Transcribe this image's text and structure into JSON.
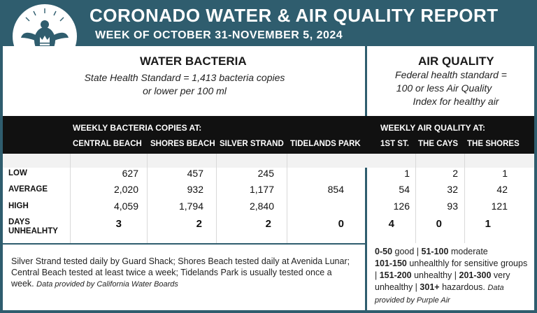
{
  "header": {
    "title": "CORONADO WATER & AIR QUALITY REPORT",
    "subtitle": "WEEK OF OCTOBER 31-NOVEMBER 5, 2024"
  },
  "water": {
    "title": "WATER BACTERIA",
    "standard_line1": "State Health Standard  = 1,413 bacteria copies",
    "standard_line2": "or lower per 100 ml",
    "group_label": "WEEKLY BACTERIA COPIES AT:",
    "columns": [
      "CENTRAL BEACH",
      "SHORES BEACH",
      "SILVER STRAND",
      "TIDELANDS PARK"
    ]
  },
  "air": {
    "title": "AIR QUALITY",
    "standard_line1": "Federal health standard =",
    "standard_line2": "100 or less Air Quality",
    "standard_line3": "Index for healthy air",
    "group_label": "WEEKLY AIR QUALITY AT:",
    "columns": [
      "1ST ST.",
      "THE CAYS",
      "THE SHORES"
    ]
  },
  "rows": [
    {
      "label": "LOW",
      "water": [
        "627",
        "457",
        "245",
        ""
      ],
      "air": [
        "1",
        "2",
        "1"
      ]
    },
    {
      "label": "AVERAGE",
      "water": [
        "2,020",
        "932",
        "1,177",
        "854"
      ],
      "air": [
        "54",
        "32",
        "42"
      ]
    },
    {
      "label": "HIGH",
      "water": [
        "4,059",
        "1,794",
        "2,840",
        ""
      ],
      "air": [
        "126",
        "93",
        "121"
      ]
    },
    {
      "label_line1": "DAYS",
      "label_line2": "UNHEALHTY",
      "water": [
        "3",
        "2",
        "2",
        "0"
      ],
      "air": [
        "4",
        "0",
        "1"
      ]
    }
  ],
  "footer_left": {
    "text": "Silver Strand tested daily by Guard Shack; Shores Beach tested daily at Avenida Lunar; Central Beach tested at least twice a week; Tidelands Park is usually tested once a week.",
    "credit": "Data provided by California Water Boards"
  },
  "footer_right": {
    "r1": "0-50",
    "r1t": "good |",
    "r2": "51-100",
    "r2t": "moderate",
    "r3": "101-150",
    "r3t": "unhealthly for sensitive groups |",
    "r4": "151-200",
    "r4t": "unhealthy |",
    "r5": "201-300",
    "r5t": "very unhealthy |",
    "r6": "301+",
    "r6t": "hazardous.",
    "credit": "Data provided by Purple Air"
  },
  "colors": {
    "brand": "#2f5d6e",
    "band": "#111111"
  }
}
